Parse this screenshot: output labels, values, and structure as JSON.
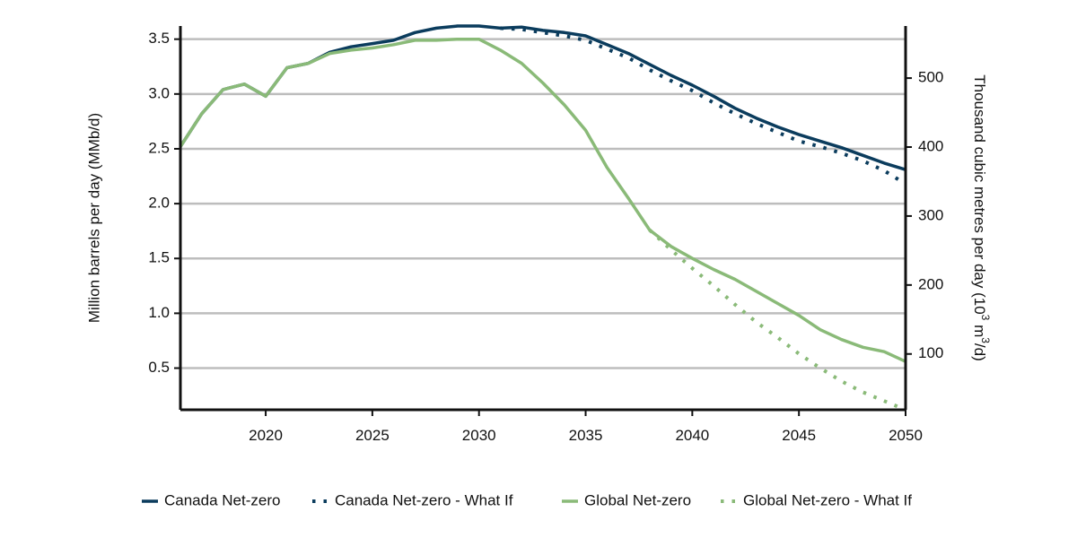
{
  "chart_data": {
    "type": "line",
    "title": "",
    "ylabel_left": "Million barrels per day (MMb/d)",
    "ylabel_right_prefix": "Thousand cubic metres per day (10",
    "ylabel_right_sup1": "3",
    "ylabel_right_mid": " m",
    "ylabel_right_sup2": "3",
    "ylabel_right_suffix": "/d)",
    "xlim": [
      2016,
      2050
    ],
    "ylim": [
      0.12,
      3.62
    ],
    "x_ticks": [
      2020,
      2025,
      2030,
      2035,
      2040,
      2045,
      2050
    ],
    "y_ticks_left": [
      0.5,
      1.0,
      1.5,
      2.0,
      2.5,
      3.0,
      3.5
    ],
    "y_tick_labels_left": [
      "0.5",
      "1.0",
      "1.5",
      "2.0",
      "2.5",
      "3.0",
      "3.5"
    ],
    "y_ticks_right": [
      100,
      200,
      300,
      400,
      500
    ],
    "y_tick_labels_right": [
      "100",
      "200",
      "300",
      "400",
      "500"
    ],
    "grid": "horizontal",
    "legend_position": "bottom",
    "series": [
      {
        "name": "Canada Net-zero",
        "color": "#0b3c5d",
        "style": "solid",
        "x": [
          2016,
          2017,
          2018,
          2019,
          2020,
          2021,
          2022,
          2023,
          2024,
          2025,
          2026,
          2027,
          2028,
          2029,
          2030,
          2031,
          2032,
          2033,
          2034,
          2035,
          2036,
          2037,
          2038,
          2039,
          2040,
          2041,
          2042,
          2043,
          2044,
          2045,
          2046,
          2047,
          2048,
          2049,
          2050
        ],
        "y": [
          2.52,
          2.82,
          3.04,
          3.09,
          2.98,
          3.24,
          3.28,
          3.38,
          3.43,
          3.46,
          3.49,
          3.56,
          3.6,
          3.62,
          3.62,
          3.6,
          3.61,
          3.58,
          3.56,
          3.53,
          3.45,
          3.37,
          3.27,
          3.17,
          3.08,
          2.98,
          2.87,
          2.78,
          2.7,
          2.63,
          2.57,
          2.51,
          2.44,
          2.37,
          2.31
        ]
      },
      {
        "name": "Canada Net-zero - What If",
        "color": "#0b3c5d",
        "style": "dotted",
        "x": [
          2031,
          2032,
          2033,
          2034,
          2035,
          2036,
          2037,
          2038,
          2039,
          2040,
          2041,
          2042,
          2043,
          2044,
          2045,
          2046,
          2047,
          2048,
          2049,
          2050
        ],
        "y": [
          3.6,
          3.59,
          3.56,
          3.53,
          3.49,
          3.41,
          3.33,
          3.22,
          3.12,
          3.03,
          2.92,
          2.82,
          2.73,
          2.65,
          2.57,
          2.52,
          2.46,
          2.39,
          2.3,
          2.18
        ]
      },
      {
        "name": "Global Net-zero",
        "color": "#8aba78",
        "style": "solid",
        "x": [
          2016,
          2017,
          2018,
          2019,
          2020,
          2021,
          2022,
          2023,
          2024,
          2025,
          2026,
          2027,
          2028,
          2029,
          2030,
          2031,
          2032,
          2033,
          2034,
          2035,
          2036,
          2037,
          2038,
          2039,
          2040,
          2041,
          2042,
          2043,
          2044,
          2045,
          2046,
          2047,
          2048,
          2049,
          2050
        ],
        "y": [
          2.52,
          2.82,
          3.04,
          3.09,
          2.98,
          3.24,
          3.28,
          3.37,
          3.4,
          3.42,
          3.45,
          3.49,
          3.49,
          3.5,
          3.5,
          3.4,
          3.28,
          3.1,
          2.9,
          2.67,
          2.33,
          2.05,
          1.76,
          1.61,
          1.5,
          1.4,
          1.31,
          1.2,
          1.09,
          0.98,
          0.85,
          0.76,
          0.69,
          0.65,
          0.56
        ]
      },
      {
        "name": "Global Net-zero - What If",
        "color": "#8aba78",
        "style": "dotted",
        "x": [
          2038,
          2039,
          2040,
          2041,
          2042,
          2043,
          2044,
          2045,
          2046,
          2047,
          2048,
          2049,
          2050
        ],
        "y": [
          1.76,
          1.58,
          1.41,
          1.25,
          1.08,
          0.92,
          0.78,
          0.63,
          0.5,
          0.38,
          0.28,
          0.2,
          0.12
        ]
      }
    ]
  }
}
